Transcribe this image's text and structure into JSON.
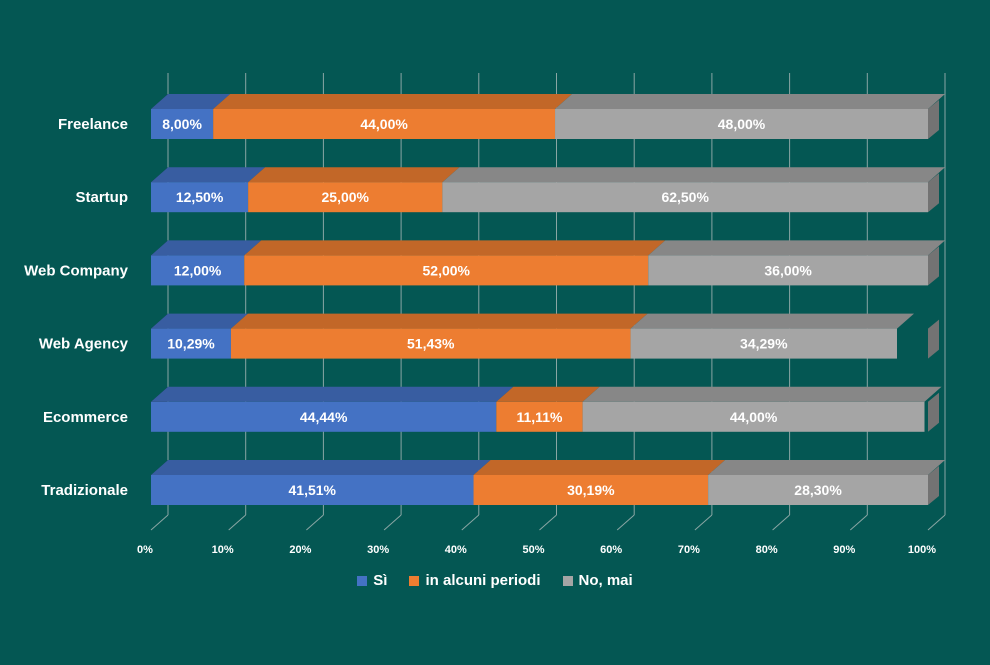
{
  "colors": {
    "background": "#045753",
    "grid": "#8aa6a4",
    "text": "#ffffff",
    "series": [
      "#4472C4",
      "#ED7D31",
      "#A5A5A5"
    ]
  },
  "chart_data": {
    "type": "bar",
    "orientation": "horizontal",
    "stacked": "100%",
    "style": "3d",
    "title": "",
    "xlabel": "",
    "ylabel": "",
    "categories": [
      "Freelance",
      "Startup",
      "Web Company",
      "Web Agency",
      "Ecommerce",
      "Tradizionale"
    ],
    "series": [
      {
        "name": "Sì",
        "color": "#4472C4",
        "values": [
          8.0,
          12.5,
          12.0,
          10.29,
          44.44,
          41.51
        ],
        "labels": [
          "8,00%",
          "12,50%",
          "12,00%",
          "10,29%",
          "44,44%",
          "41,51%"
        ]
      },
      {
        "name": "in alcuni periodi",
        "color": "#ED7D31",
        "values": [
          44.0,
          25.0,
          52.0,
          51.43,
          11.11,
          30.19
        ],
        "labels": [
          "44,00%",
          "25,00%",
          "52,00%",
          "51,43%",
          "11,11%",
          "30,19%"
        ]
      },
      {
        "name": "No, mai",
        "color": "#A5A5A5",
        "values": [
          48.0,
          62.5,
          36.0,
          34.29,
          44.0,
          28.3
        ],
        "labels": [
          "48,00%",
          "62,50%",
          "36,00%",
          "34,29%",
          "44,00%",
          "28,30%"
        ]
      }
    ],
    "xlim": [
      0,
      100
    ],
    "x_ticks": [
      "0%",
      "10%",
      "20%",
      "30%",
      "40%",
      "50%",
      "60%",
      "70%",
      "80%",
      "90%",
      "100%"
    ],
    "grid": true,
    "legend_position": "bottom"
  }
}
